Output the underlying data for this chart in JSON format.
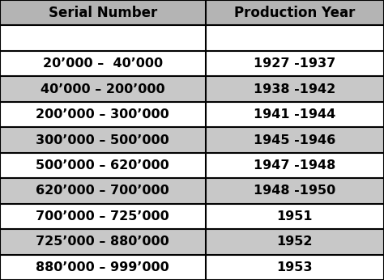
{
  "col1_header": "Serial Number",
  "col2_header": "Production Year",
  "rows": [
    {
      "serial": "20’000 –  40’000",
      "year": "1927 -1937",
      "bg": "#ffffff"
    },
    {
      "serial": "40’000 – 200’000",
      "year": "1938 -1942",
      "bg": "#c8c8c8"
    },
    {
      "serial": "200’000 – 300’000",
      "year": "1941 -1944",
      "bg": "#ffffff"
    },
    {
      "serial": "300’000 – 500’000",
      "year": "1945 -1946",
      "bg": "#c8c8c8"
    },
    {
      "serial": "500’000 – 620’000",
      "year": "1947 -1948",
      "bg": "#ffffff"
    },
    {
      "serial": "620’000 – 700’000",
      "year": "1948 -1950",
      "bg": "#c8c8c8"
    },
    {
      "serial": "700’000 – 725’000",
      "year": "1951",
      "bg": "#ffffff"
    },
    {
      "serial": "725’000 – 880’000",
      "year": "1952",
      "bg": "#c8c8c8"
    },
    {
      "serial": "880’000 – 999’000",
      "year": "1953",
      "bg": "#ffffff"
    }
  ],
  "header_bg": "#b4b4b4",
  "empty_row_bg": "#ffffff",
  "border_color": "#000000",
  "text_color": "#000000",
  "fig_bg": "#ffffff",
  "header_fontsize": 12,
  "cell_fontsize": 11.5,
  "col_split": 0.535,
  "n_data_rows": 9,
  "n_extra_rows": 2,
  "lw": 1.5
}
